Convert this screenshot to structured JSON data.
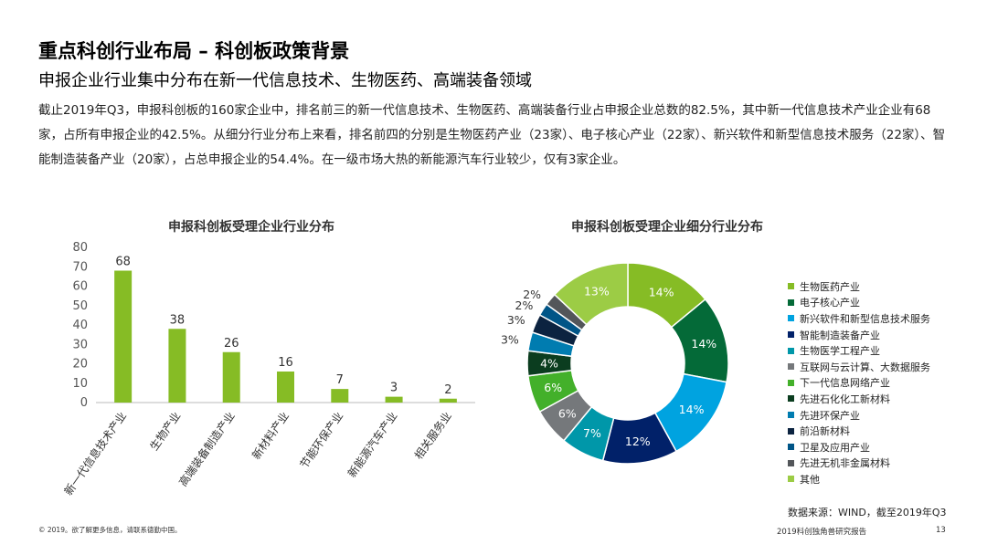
{
  "header": {
    "title": "重点科创行业布局 – 科创板政策背景",
    "subtitle": "申报企业行业集中分布在新一代信息技术、生物医药、高端装备领域"
  },
  "intro": "截止2019年Q3，申报科创板的160家企业中，排名前三的新一代信息技术、生物医药、高端装备行业占申报企业总数的82.5%，其中新一代信息技术产业企业有68家，占所有申报企业的42.5%。从细分行业分布上来看，排名前四的分别是生物医药产业（23家）、电子核心产业（22家）、新兴软件和新型信息技术服务（22家）、智能制造装备产业（20家），占总申报企业的54.4%。在一级市场大热的新能源汽车行业较少，仅有3家企业。",
  "chart_data": [
    {
      "type": "bar",
      "title": "申报科创板受理企业行业分布",
      "categories": [
        "新一代信息技术产业",
        "生物产业",
        "高端装备制造产业",
        "新材料产业",
        "节能环保产业",
        "新能源汽车产业",
        "相关服务业"
      ],
      "values": [
        68,
        38,
        26,
        16,
        7,
        3,
        2
      ],
      "ylim": [
        0,
        80
      ],
      "yticks": [
        "0",
        "10",
        "20",
        "30",
        "40",
        "50",
        "60",
        "70",
        "80"
      ],
      "color": "#86bc25",
      "grid": false,
      "legend": "none"
    },
    {
      "type": "pie",
      "style": "donut",
      "title": "申报科创板受理企业细分行业分布",
      "labels": [
        "生物医药产业",
        "电子核心产业",
        "新兴软件和新型信息技术服务",
        "智能制造装备产业",
        "生物医学工程产业",
        "互联网与云计算、大数据服务",
        "下一代信息网络产业",
        "先进石化化工新材料",
        "先进环保产业",
        "前沿新材料",
        "卫星及应用产业",
        "先进无机非金属材料",
        "其他"
      ],
      "values": [
        14,
        14,
        14,
        12,
        7,
        6,
        6,
        4,
        3,
        3,
        2,
        2,
        13
      ],
      "value_labels": [
        "14%",
        "14%",
        "14%",
        "12%",
        "7%",
        "6%",
        "6%",
        "4%",
        "3%",
        "3%",
        "2%",
        "2%",
        "13%"
      ],
      "colors": [
        "#86bc25",
        "#046a38",
        "#00a3e0",
        "#012169",
        "#0097a9",
        "#75787b",
        "#43b02a",
        "#0b3d1f",
        "#007cb0",
        "#0c2340",
        "#005587",
        "#53565a",
        "#9ccc45"
      ],
      "legend": "right"
    }
  ],
  "footer": {
    "source": "数据来源：WIND，截至2019年Q3",
    "copyright": "© 2019。欲了解更多信息，请联系德勤中国。",
    "report_name": "2019科创独角兽研究报告",
    "page_number": "13"
  }
}
